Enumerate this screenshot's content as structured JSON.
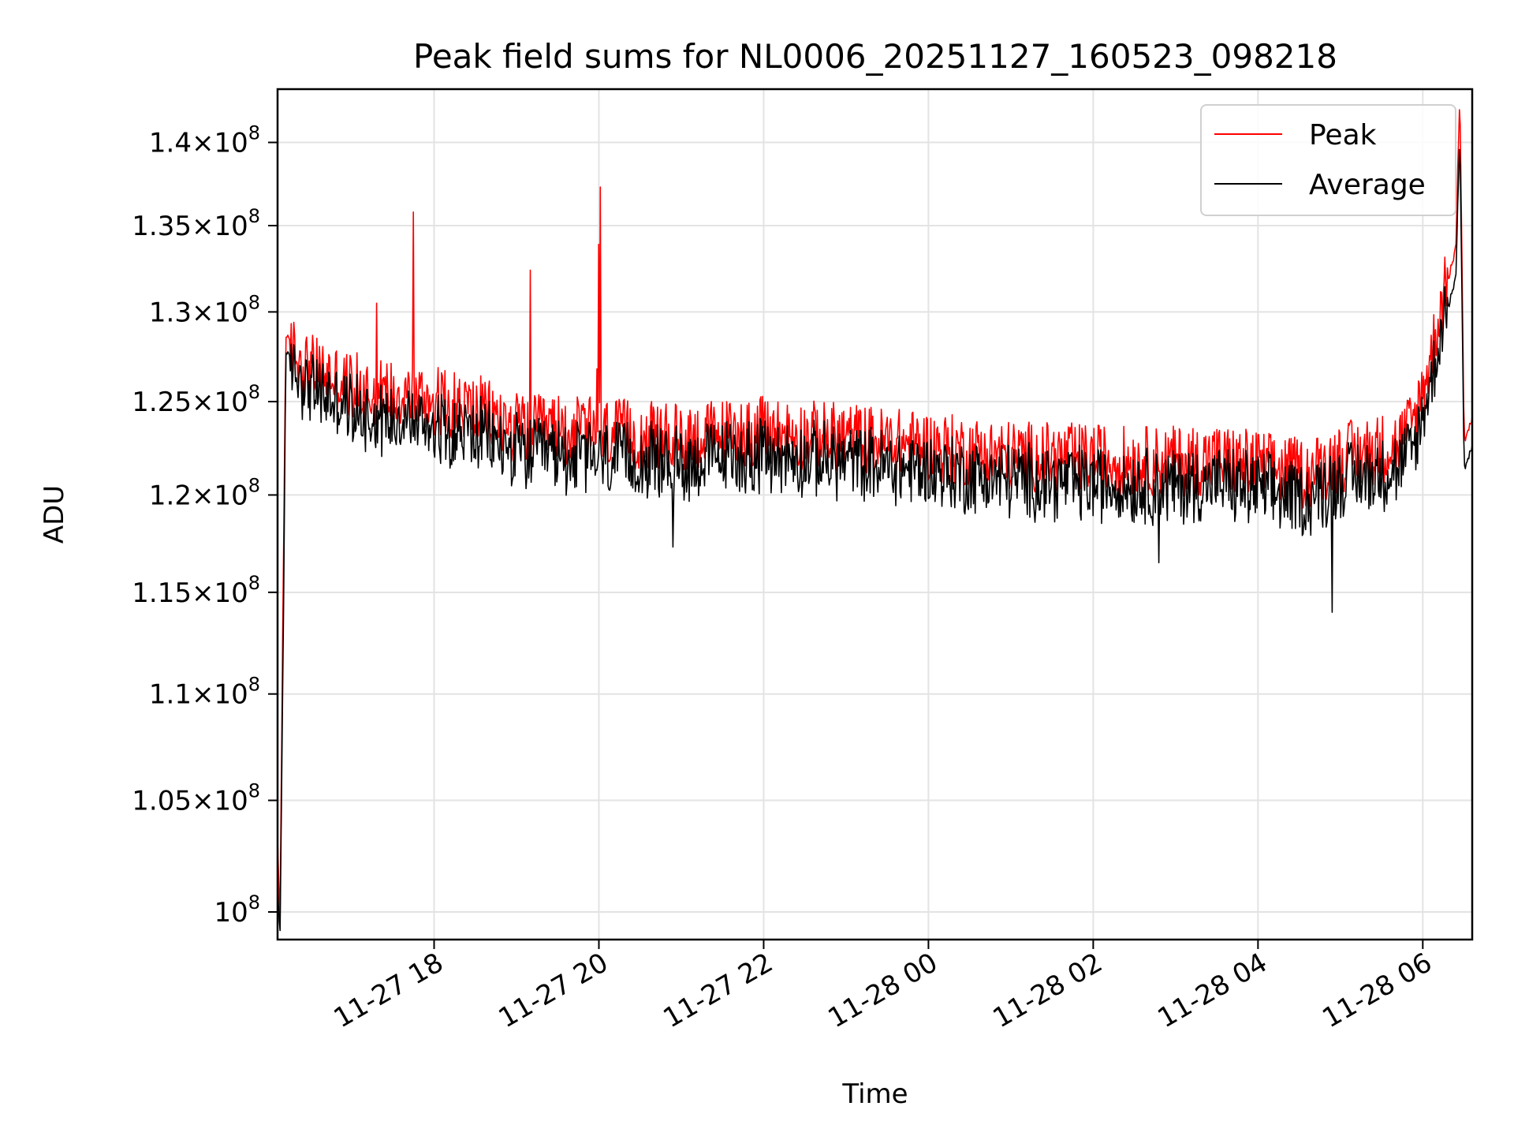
{
  "chart_data": {
    "type": "line",
    "title": "Peak field sums for NL0006_20251127_160523_098218",
    "xlabel": "Time",
    "ylabel": "ADU",
    "yscale": "log",
    "xlim_hours": [
      16.1,
      30.6
    ],
    "ylim": [
      98800000,
      143300000
    ],
    "grid": true,
    "legend_position": "upper right",
    "x_ticks": [
      {
        "hours": 18,
        "label": "11-27 18"
      },
      {
        "hours": 20,
        "label": "11-27 20"
      },
      {
        "hours": 22,
        "label": "11-27 22"
      },
      {
        "hours": 24,
        "label": "11-28 00"
      },
      {
        "hours": 26,
        "label": "11-28 02"
      },
      {
        "hours": 28,
        "label": "11-28 04"
      },
      {
        "hours": 30,
        "label": "11-28 06"
      }
    ],
    "y_ticks": [
      {
        "value": 100000000,
        "mant": "",
        "exp": "8"
      },
      {
        "value": 105000000,
        "mant": "1.05",
        "exp": "8"
      },
      {
        "value": 110000000,
        "mant": "1.1",
        "exp": "8"
      },
      {
        "value": 115000000,
        "mant": "1.15",
        "exp": "8"
      },
      {
        "value": 120000000,
        "mant": "1.2",
        "exp": "8"
      },
      {
        "value": 125000000,
        "mant": "1.25",
        "exp": "8"
      },
      {
        "value": 130000000,
        "mant": "1.3",
        "exp": "8"
      },
      {
        "value": 135000000,
        "mant": "1.35",
        "exp": "8"
      },
      {
        "value": 140000000,
        "mant": "1.4",
        "exp": "8"
      }
    ],
    "series": [
      {
        "name": "Peak",
        "color": "#ff0000",
        "x_hours": [
          16.1,
          16.13,
          16.17,
          16.2,
          16.3,
          16.4,
          16.5,
          16.6,
          16.7,
          16.8,
          16.9,
          17.0,
          17.2,
          17.4,
          17.6,
          17.8,
          18.0,
          18.3,
          18.6,
          18.9,
          19.2,
          19.5,
          19.8,
          20.1,
          20.4,
          20.7,
          21.0,
          21.5,
          22.0,
          22.5,
          23.0,
          23.5,
          24.0,
          24.5,
          25.0,
          25.5,
          26.0,
          26.5,
          27.0,
          27.5,
          28.0,
          28.3,
          28.6,
          29.0,
          29.4,
          29.7,
          29.9,
          30.1,
          30.25,
          30.4,
          30.45,
          30.5,
          30.6
        ],
        "values": [
          103000000,
          99500000,
          116000000,
          128600000,
          127800000,
          127200000,
          126900000,
          126600000,
          126500000,
          126300000,
          126000000,
          125900000,
          125600000,
          125500000,
          125600000,
          125200000,
          125100000,
          124800000,
          124500000,
          123700000,
          123500000,
          123500000,
          123400000,
          123300000,
          123200000,
          123100000,
          123000000,
          123300000,
          123400000,
          123200000,
          123100000,
          122800000,
          122600000,
          122300000,
          122100000,
          122000000,
          121900000,
          121800000,
          121800000,
          121900000,
          121600000,
          121300000,
          121100000,
          122000000,
          122400000,
          122700000,
          124000000,
          127500000,
          131000000,
          133500000,
          143300000,
          123000000,
          124000000
        ],
        "spikes": [
          {
            "hours": 17.3,
            "value": 130500000
          },
          {
            "hours": 17.75,
            "value": 135800000
          },
          {
            "hours": 19.17,
            "value": 132400000
          },
          {
            "hours": 20.0,
            "value": 133900000
          },
          {
            "hours": 20.02,
            "value": 137300000
          },
          {
            "hours": 19.98,
            "value": 126800000
          }
        ]
      },
      {
        "name": "Average",
        "color": "#000000",
        "x_hours": [
          16.1,
          16.13,
          16.17,
          16.2,
          16.3,
          16.4,
          16.5,
          16.6,
          16.7,
          16.8,
          16.9,
          17.0,
          17.2,
          17.4,
          17.6,
          17.8,
          18.0,
          18.3,
          18.6,
          18.9,
          19.2,
          19.5,
          19.8,
          20.1,
          20.4,
          20.7,
          21.0,
          21.5,
          22.0,
          22.5,
          23.0,
          23.5,
          24.0,
          24.5,
          25.0,
          25.5,
          26.0,
          26.5,
          27.0,
          27.5,
          28.0,
          28.3,
          28.6,
          29.0,
          29.4,
          29.7,
          29.9,
          30.1,
          30.25,
          30.4,
          30.45,
          30.5,
          30.6
        ],
        "values": [
          101000000,
          98900000,
          113000000,
          127700000,
          126800000,
          126200000,
          125800000,
          125500000,
          125300000,
          125000000,
          124800000,
          124600000,
          124300000,
          124100000,
          124200000,
          123900000,
          123800000,
          123400000,
          123100000,
          122400000,
          122100000,
          122100000,
          122000000,
          121900000,
          121800000,
          121800000,
          121700000,
          122000000,
          122100000,
          121900000,
          121800000,
          121500000,
          121300000,
          121000000,
          120800000,
          120700000,
          120600000,
          120500000,
          120500000,
          120600000,
          120300000,
          120000000,
          119800000,
          120800000,
          121100000,
          121400000,
          122500000,
          126000000,
          129500000,
          131800000,
          140800000,
          121500000,
          122500000
        ],
        "spikes": [
          {
            "hours": 28.9,
            "value": 114000000
          },
          {
            "hours": 26.8,
            "value": 116500000
          },
          {
            "hours": 20.9,
            "value": 117300000
          }
        ]
      }
    ]
  }
}
